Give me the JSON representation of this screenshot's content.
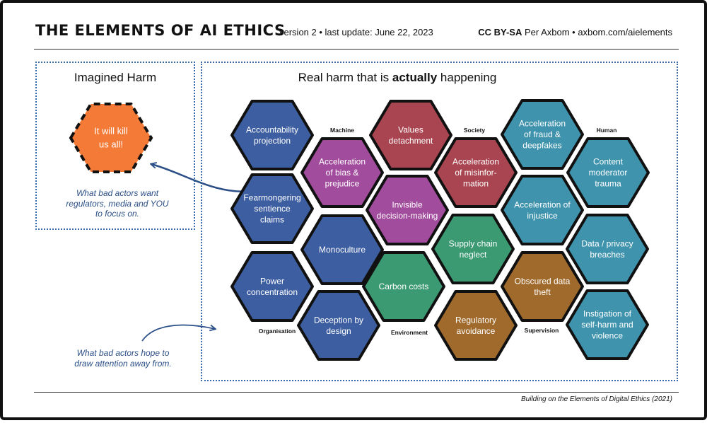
{
  "header": {
    "title": "THE ELEMENTS OF AI ETHICS",
    "subtitle": "version 2 • last update: June 22, 2023",
    "license_bold": "CC BY-SA",
    "license_rest": " Per Axbom • axbom.com/aielements"
  },
  "imagined": {
    "title": "Imagined Harm",
    "hex_lines": [
      "It will kill",
      "us all!"
    ],
    "note": [
      "What bad actors want",
      "regulators, media and YOU",
      "to focus on."
    ]
  },
  "real": {
    "title_pre": "Real harm that is ",
    "title_bold": "actually",
    "title_post": " happening",
    "note": [
      "What bad actors hope to",
      "draw attention away from."
    ]
  },
  "colors": {
    "organisation": "#3d5fa1",
    "machine": "#a14c9c",
    "society": "#a84550",
    "environment": "#3c9a73",
    "supervision": "#a06a2c",
    "human": "#3f93ad",
    "imagined": "#f47a37"
  },
  "categories": [
    "Machine",
    "Society",
    "Human",
    "Organisation",
    "Environment",
    "Supervision"
  ],
  "hexagons": [
    {
      "group": "organisation",
      "lines": [
        "Accountability",
        "projection"
      ]
    },
    {
      "group": "organisation",
      "lines": [
        "Fearmongering",
        "sentience",
        "claims"
      ]
    },
    {
      "group": "organisation",
      "lines": [
        "Power",
        "concentration"
      ]
    },
    {
      "group": "organisation",
      "lines": [
        "Monoculture"
      ]
    },
    {
      "group": "organisation",
      "lines": [
        "Deception by",
        "design"
      ]
    },
    {
      "group": "machine",
      "lines": [
        "Acceleration",
        "of bias &",
        "prejudice"
      ]
    },
    {
      "group": "machine",
      "lines": [
        "Invisible",
        "decision-making"
      ]
    },
    {
      "group": "society",
      "lines": [
        "Values",
        "detachment"
      ]
    },
    {
      "group": "society",
      "lines": [
        "Acceleration",
        "of misinfor-",
        "mation"
      ]
    },
    {
      "group": "environment",
      "lines": [
        "Carbon costs"
      ]
    },
    {
      "group": "environment",
      "lines": [
        "Supply chain",
        "neglect"
      ]
    },
    {
      "group": "supervision",
      "lines": [
        "Regulatory",
        "avoidance"
      ]
    },
    {
      "group": "supervision",
      "lines": [
        "Obscured data",
        "theft"
      ]
    },
    {
      "group": "human",
      "lines": [
        "Acceleration",
        "of fraud &",
        "deepfakes"
      ]
    },
    {
      "group": "human",
      "lines": [
        "Acceleration of",
        "injustice"
      ]
    },
    {
      "group": "human",
      "lines": [
        "Content",
        "moderator",
        "trauma"
      ]
    },
    {
      "group": "human",
      "lines": [
        "Data / privacy",
        "breaches"
      ]
    },
    {
      "group": "human",
      "lines": [
        "Instigation of",
        "self-harm and",
        "violence"
      ]
    }
  ],
  "footer": "Building on the Elements of Digital Ethics (2021)"
}
